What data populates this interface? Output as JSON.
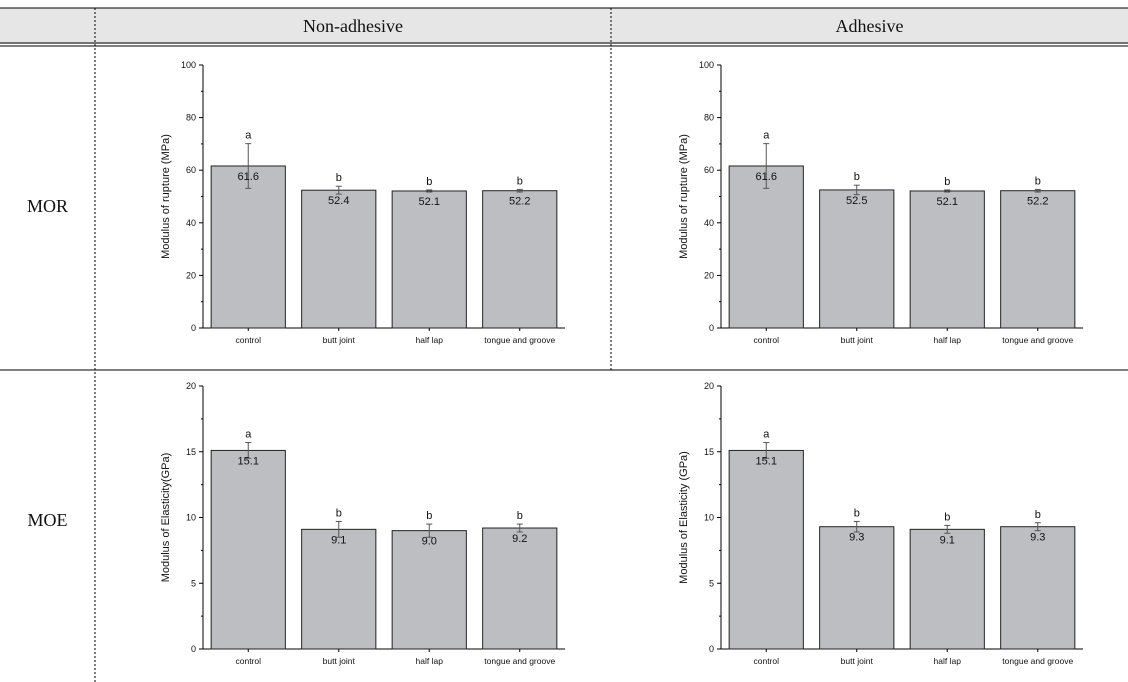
{
  "table": {
    "columns": [
      "Non-adhesive",
      "Adhesive"
    ],
    "rows": [
      "MOR",
      "MOE"
    ]
  },
  "colors": {
    "bar_fill": "#bdbec2",
    "bar_stroke": "#222222",
    "header_bg": "#e6e6e6"
  },
  "chart_data": [
    {
      "type": "bar",
      "ylabel": "Modulus of rupture (MPa)",
      "categories": [
        "control",
        "butt joint",
        "half lap",
        "tongue and groove"
      ],
      "values": [
        61.6,
        52.4,
        52.1,
        52.2
      ],
      "errors": [
        8.5,
        1.5,
        0.4,
        0.5
      ],
      "letters": [
        "a",
        "b",
        "b",
        "b"
      ],
      "data_labels": [
        "61.6",
        "52.4",
        "52.1",
        "52.2"
      ],
      "ylim": [
        0,
        100
      ],
      "yticks": [
        0,
        20,
        40,
        60,
        80,
        100
      ]
    },
    {
      "type": "bar",
      "ylabel": "Modulus of rupture (MPa)",
      "categories": [
        "control",
        "butt joint",
        "half lap",
        "tongue and groove"
      ],
      "values": [
        61.6,
        52.5,
        52.1,
        52.2
      ],
      "errors": [
        8.5,
        1.8,
        0.4,
        0.5
      ],
      "letters": [
        "a",
        "b",
        "b",
        "b"
      ],
      "data_labels": [
        "61.6",
        "52.5",
        "52.1",
        "52.2"
      ],
      "ylim": [
        0,
        100
      ],
      "yticks": [
        0,
        20,
        40,
        60,
        80,
        100
      ]
    },
    {
      "type": "bar",
      "ylabel": "Modulus of Elasticity(GPa)",
      "categories": [
        "control",
        "butt joint",
        "half lap",
        "tongue and groove"
      ],
      "values": [
        15.1,
        9.1,
        9.0,
        9.2
      ],
      "errors": [
        0.6,
        0.6,
        0.5,
        0.3
      ],
      "letters": [
        "a",
        "b",
        "b",
        "b"
      ],
      "data_labels": [
        "15.1",
        "9.1",
        "9.0",
        "9.2"
      ],
      "ylim": [
        0,
        20
      ],
      "yticks": [
        0,
        5,
        10,
        15,
        20
      ]
    },
    {
      "type": "bar",
      "ylabel": "Modulus of Elasticity (GPa)",
      "categories": [
        "control",
        "butt joint",
        "half lap",
        "tongue and groove"
      ],
      "values": [
        15.1,
        9.3,
        9.1,
        9.3
      ],
      "errors": [
        0.6,
        0.4,
        0.3,
        0.3
      ],
      "letters": [
        "a",
        "b",
        "b",
        "b"
      ],
      "data_labels": [
        "15.1",
        "9.3",
        "9.1",
        "9.3"
      ],
      "ylim": [
        0,
        20
      ],
      "yticks": [
        0,
        5,
        10,
        15,
        20
      ]
    }
  ]
}
